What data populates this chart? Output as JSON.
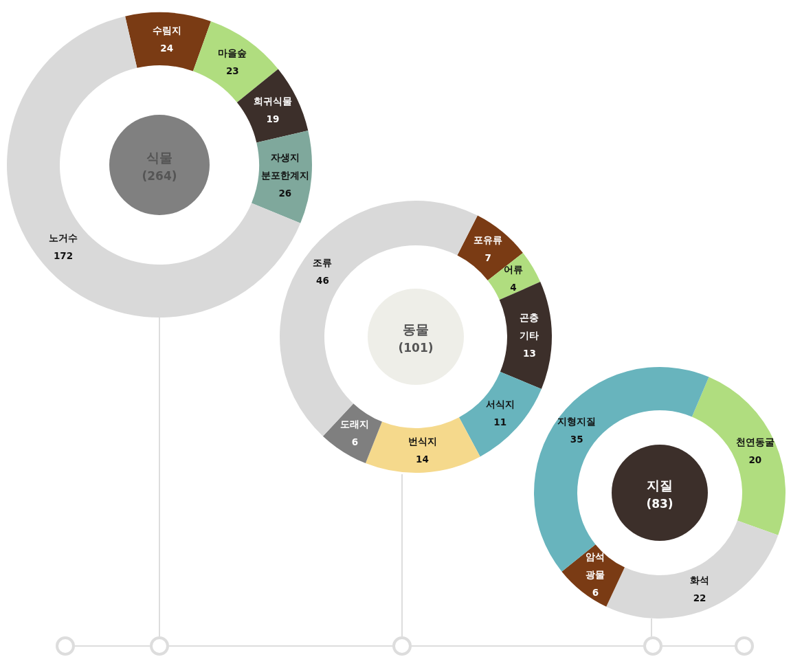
{
  "chart_data": [
    {
      "type": "donut",
      "title": "식물",
      "subtitle": "(264)",
      "categories": [
        "수림지",
        "마을숲",
        "희귀식물",
        "자생지 분포한계지",
        "노거수"
      ],
      "values": [
        24,
        23,
        19,
        26,
        172
      ],
      "colors": [
        "#7a3b14",
        "#b0dd7f",
        "#3c2f2a",
        "#7fa89c",
        "#d9d9d9"
      ],
      "data_labels": true
    },
    {
      "type": "donut",
      "title": "동물",
      "subtitle": "(101)",
      "categories": [
        "포유류",
        "어류",
        "곤충 기타",
        "서식지",
        "번식지",
        "도래지",
        "조류"
      ],
      "values": [
        7,
        4,
        13,
        11,
        14,
        6,
        46
      ],
      "colors": [
        "#7a3b14",
        "#b0dd7f",
        "#3c2f2a",
        "#68b4bd",
        "#f5d98c",
        "#7f7f7f",
        "#d9d9d9"
      ],
      "data_labels": true
    },
    {
      "type": "donut",
      "title": "지질",
      "subtitle": "(83)",
      "categories": [
        "천연동굴",
        "화석",
        "암석 광물",
        "지형지질"
      ],
      "values": [
        20,
        22,
        6,
        35
      ],
      "colors": [
        "#b0dd7f",
        "#d9d9d9",
        "#7a3b14",
        "#68b4bd"
      ],
      "data_labels": true
    }
  ]
}
